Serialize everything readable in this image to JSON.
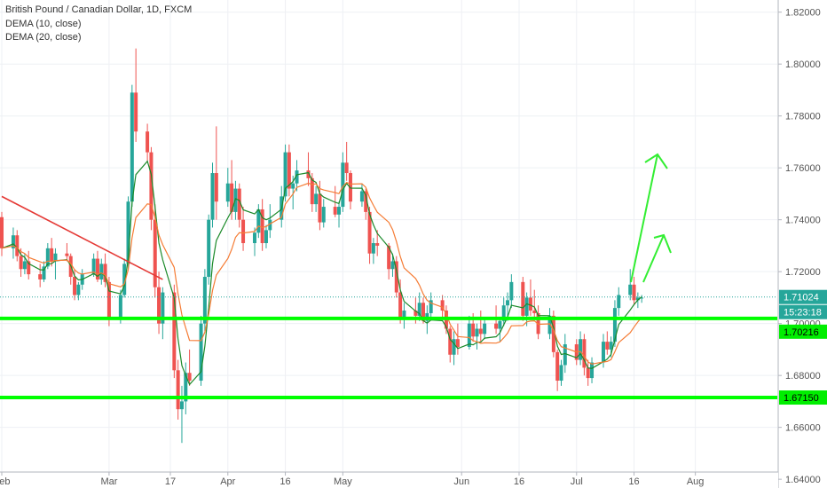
{
  "legend": {
    "title": "British Pound / Canadian Dollar, 1D, FXCM",
    "ind1": "DEMA (10, close)",
    "ind2": "DEMA (20, close)"
  },
  "colors": {
    "up": "#26a69a",
    "down": "#ef5350",
    "dema10": "#1b8a2a",
    "dema20": "#f57c35",
    "trendline": "#e53935",
    "support": "#00ff00",
    "arrows": "#33ee33",
    "price_label": "#26a69a",
    "support_label": "#00ee00",
    "grid": "#eef0f4"
  },
  "chart_data": {
    "type": "candlestick",
    "title": "British Pound / Canadian Dollar, 1D, FXCM",
    "ylim": [
      1.638,
      1.824
    ],
    "y_ticks": [
      "1.82000",
      "1.80000",
      "1.78000",
      "1.76000",
      "1.74000",
      "1.72000",
      "1.70000",
      "1.68000",
      "1.66000",
      "1.64000"
    ],
    "x_ticks": [
      {
        "label": "Feb",
        "date": "2019-02-01"
      },
      {
        "label": "Mar",
        "date": "2019-03-01"
      },
      {
        "label": "17",
        "date": "2019-03-17"
      },
      {
        "label": "Apr",
        "date": "2019-04-01"
      },
      {
        "label": "16",
        "date": "2019-04-16"
      },
      {
        "label": "May",
        "date": "2019-05-01"
      },
      {
        "label": "Jun",
        "date": "2019-06-01"
      },
      {
        "label": "16",
        "date": "2019-06-16"
      },
      {
        "label": "Jul",
        "date": "2019-07-01"
      },
      {
        "label": "16",
        "date": "2019-07-16"
      },
      {
        "label": "Aug",
        "date": "2019-08-01"
      }
    ],
    "x_range": [
      "2019-02-01",
      "2019-08-21"
    ],
    "candles": [
      [
        "2019-02-01",
        1.741,
        1.743,
        1.726,
        1.729
      ],
      [
        "2019-02-04",
        1.729,
        1.737,
        1.725,
        1.734
      ],
      [
        "2019-02-05",
        1.734,
        1.736,
        1.724,
        1.726
      ],
      [
        "2019-02-06",
        1.726,
        1.729,
        1.718,
        1.721
      ],
      [
        "2019-02-07",
        1.721,
        1.727,
        1.719,
        1.724
      ],
      [
        "2019-02-08",
        1.724,
        1.728,
        1.717,
        1.719
      ],
      [
        "2019-02-11",
        1.719,
        1.723,
        1.714,
        1.717
      ],
      [
        "2019-02-12",
        1.717,
        1.724,
        1.716,
        1.722
      ],
      [
        "2019-02-13",
        1.722,
        1.731,
        1.721,
        1.729
      ],
      [
        "2019-02-14",
        1.729,
        1.733,
        1.722,
        1.724
      ],
      [
        "2019-02-15",
        1.724,
        1.729,
        1.717,
        1.727
      ],
      [
        "2019-02-18",
        1.727,
        1.731,
        1.724,
        1.726
      ],
      [
        "2019-02-19",
        1.726,
        1.727,
        1.715,
        1.718
      ],
      [
        "2019-02-20",
        1.718,
        1.721,
        1.709,
        1.711
      ],
      [
        "2019-02-21",
        1.711,
        1.716,
        1.709,
        1.715
      ],
      [
        "2019-02-22",
        1.715,
        1.721,
        1.713,
        1.719
      ],
      [
        "2019-02-25",
        1.719,
        1.727,
        1.718,
        1.725
      ],
      [
        "2019-02-26",
        1.725,
        1.728,
        1.716,
        1.717
      ],
      [
        "2019-02-27",
        1.717,
        1.725,
        1.715,
        1.723
      ],
      [
        "2019-02-28",
        1.723,
        1.727,
        1.714,
        1.716
      ],
      [
        "2019-03-01",
        1.716,
        1.718,
        1.699,
        1.702
      ],
      [
        "2019-03-04",
        1.702,
        1.713,
        1.7,
        1.711
      ],
      [
        "2019-03-05",
        1.711,
        1.725,
        1.71,
        1.723
      ],
      [
        "2019-03-06",
        1.723,
        1.749,
        1.721,
        1.747
      ],
      [
        "2019-03-07",
        1.747,
        1.792,
        1.745,
        1.789
      ],
      [
        "2019-03-08",
        1.789,
        1.806,
        1.77,
        1.774
      ],
      [
        "2019-03-11",
        1.774,
        1.777,
        1.762,
        1.766
      ],
      [
        "2019-03-12",
        1.766,
        1.768,
        1.736,
        1.74
      ],
      [
        "2019-03-13",
        1.74,
        1.746,
        1.71,
        1.714
      ],
      [
        "2019-03-14",
        1.714,
        1.72,
        1.696,
        1.7
      ],
      [
        "2019-03-15",
        1.7,
        1.714,
        1.694,
        1.712
      ],
      [
        "2019-03-18",
        1.712,
        1.715,
        1.679,
        1.682
      ],
      [
        "2019-03-19",
        1.682,
        1.686,
        1.663,
        1.667
      ],
      [
        "2019-03-20",
        1.667,
        1.676,
        1.654,
        1.67
      ],
      [
        "2019-03-21",
        1.67,
        1.685,
        1.665,
        1.681
      ],
      [
        "2019-03-22",
        1.681,
        1.69,
        1.676,
        1.678
      ],
      [
        "2019-03-25",
        1.678,
        1.703,
        1.676,
        1.7
      ],
      [
        "2019-03-26",
        1.7,
        1.721,
        1.697,
        1.718
      ],
      [
        "2019-03-27",
        1.718,
        1.742,
        1.715,
        1.74
      ],
      [
        "2019-03-28",
        1.74,
        1.762,
        1.737,
        1.758
      ],
      [
        "2019-03-29",
        1.758,
        1.776,
        1.74,
        1.747
      ],
      [
        "2019-04-01",
        1.747,
        1.76,
        1.745,
        1.754
      ],
      [
        "2019-04-02",
        1.754,
        1.763,
        1.74,
        1.743
      ],
      [
        "2019-04-03",
        1.743,
        1.755,
        1.74,
        1.752
      ],
      [
        "2019-04-04",
        1.752,
        1.754,
        1.737,
        1.74
      ],
      [
        "2019-04-05",
        1.74,
        1.745,
        1.728,
        1.731
      ],
      [
        "2019-04-08",
        1.731,
        1.737,
        1.726,
        1.735
      ],
      [
        "2019-04-09",
        1.735,
        1.746,
        1.733,
        1.744
      ],
      [
        "2019-04-10",
        1.744,
        1.748,
        1.728,
        1.731
      ],
      [
        "2019-04-11",
        1.731,
        1.738,
        1.729,
        1.736
      ],
      [
        "2019-04-12",
        1.736,
        1.746,
        1.733,
        1.74
      ],
      [
        "2019-04-15",
        1.74,
        1.753,
        1.737,
        1.749
      ],
      [
        "2019-04-16",
        1.749,
        1.769,
        1.747,
        1.766
      ],
      [
        "2019-04-17",
        1.766,
        1.769,
        1.749,
        1.752
      ],
      [
        "2019-04-18",
        1.752,
        1.757,
        1.744,
        1.754
      ],
      [
        "2019-04-19",
        1.754,
        1.763,
        1.751,
        1.759
      ],
      [
        "2019-04-22",
        1.759,
        1.766,
        1.753,
        1.756
      ],
      [
        "2019-04-23",
        1.756,
        1.758,
        1.743,
        1.746
      ],
      [
        "2019-04-24",
        1.746,
        1.753,
        1.743,
        1.75
      ],
      [
        "2019-04-25",
        1.75,
        1.755,
        1.736,
        1.739
      ],
      [
        "2019-04-26",
        1.739,
        1.748,
        1.737,
        1.745
      ],
      [
        "2019-04-29",
        1.745,
        1.753,
        1.741,
        1.742
      ],
      [
        "2019-04-30",
        1.742,
        1.747,
        1.737,
        1.745
      ],
      [
        "2019-05-01",
        1.745,
        1.766,
        1.743,
        1.762
      ],
      [
        "2019-05-02",
        1.762,
        1.77,
        1.755,
        1.758
      ],
      [
        "2019-05-03",
        1.758,
        1.759,
        1.744,
        1.747
      ],
      [
        "2019-05-06",
        1.747,
        1.754,
        1.745,
        1.751
      ],
      [
        "2019-05-07",
        1.751,
        1.752,
        1.74,
        1.743
      ],
      [
        "2019-05-08",
        1.743,
        1.745,
        1.723,
        1.727
      ],
      [
        "2019-05-09",
        1.727,
        1.733,
        1.723,
        1.731
      ],
      [
        "2019-05-10",
        1.731,
        1.736,
        1.726,
        1.73
      ],
      [
        "2019-05-13",
        1.73,
        1.731,
        1.717,
        1.721
      ],
      [
        "2019-05-14",
        1.721,
        1.727,
        1.718,
        1.724
      ],
      [
        "2019-05-15",
        1.724,
        1.726,
        1.71,
        1.712
      ],
      [
        "2019-05-16",
        1.712,
        1.717,
        1.7,
        1.702
      ],
      [
        "2019-05-17",
        1.702,
        1.708,
        1.698,
        1.705
      ],
      [
        "2019-05-20",
        1.705,
        1.71,
        1.7,
        1.703
      ],
      [
        "2019-05-21",
        1.703,
        1.712,
        1.701,
        1.708
      ],
      [
        "2019-05-22",
        1.708,
        1.71,
        1.7,
        1.701
      ],
      [
        "2019-05-23",
        1.701,
        1.707,
        1.696,
        1.704
      ],
      [
        "2019-05-24",
        1.704,
        1.712,
        1.702,
        1.709
      ],
      [
        "2019-05-27",
        1.709,
        1.711,
        1.702,
        1.705
      ],
      [
        "2019-05-28",
        1.705,
        1.707,
        1.696,
        1.698
      ],
      [
        "2019-05-29",
        1.698,
        1.699,
        1.685,
        1.688
      ],
      [
        "2019-05-30",
        1.688,
        1.697,
        1.684,
        1.694
      ],
      [
        "2019-05-31",
        1.694,
        1.7,
        1.688,
        1.691
      ],
      [
        "2019-06-03",
        1.691,
        1.703,
        1.69,
        1.7
      ],
      [
        "2019-06-04",
        1.7,
        1.704,
        1.693,
        1.695
      ],
      [
        "2019-06-05",
        1.695,
        1.7,
        1.69,
        1.698
      ],
      [
        "2019-06-06",
        1.698,
        1.705,
        1.693,
        1.696
      ],
      [
        "2019-06-07",
        1.696,
        1.702,
        1.694,
        1.7
      ],
      [
        "2019-06-10",
        1.7,
        1.707,
        1.696,
        1.698
      ],
      [
        "2019-06-11",
        1.698,
        1.702,
        1.693,
        1.701
      ],
      [
        "2019-06-12",
        1.701,
        1.71,
        1.699,
        1.707
      ],
      [
        "2019-06-13",
        1.707,
        1.712,
        1.701,
        1.709
      ],
      [
        "2019-06-14",
        1.709,
        1.719,
        1.706,
        1.716
      ],
      [
        "2019-06-17",
        1.716,
        1.718,
        1.701,
        1.703
      ],
      [
        "2019-06-18",
        1.703,
        1.712,
        1.699,
        1.71
      ],
      [
        "2019-06-19",
        1.71,
        1.717,
        1.703,
        1.705
      ],
      [
        "2019-06-20",
        1.705,
        1.713,
        1.702,
        1.704
      ],
      [
        "2019-06-21",
        1.704,
        1.707,
        1.694,
        1.696
      ],
      [
        "2019-06-24",
        1.696,
        1.706,
        1.694,
        1.703
      ],
      [
        "2019-06-25",
        1.703,
        1.705,
        1.687,
        1.689
      ],
      [
        "2019-06-26",
        1.689,
        1.69,
        1.674,
        1.678
      ],
      [
        "2019-06-27",
        1.678,
        1.686,
        1.676,
        1.684
      ],
      [
        "2019-06-28",
        1.684,
        1.696,
        1.681,
        1.692
      ],
      [
        "2019-07-01",
        1.692,
        1.694,
        1.684,
        1.686
      ],
      [
        "2019-07-02",
        1.686,
        1.697,
        1.684,
        1.694
      ],
      [
        "2019-07-03",
        1.694,
        1.696,
        1.68,
        1.683
      ],
      [
        "2019-07-04",
        1.683,
        1.686,
        1.676,
        1.679
      ],
      [
        "2019-07-05",
        1.679,
        1.687,
        1.677,
        1.685
      ],
      [
        "2019-07-08",
        1.685,
        1.696,
        1.683,
        1.693
      ],
      [
        "2019-07-09",
        1.693,
        1.697,
        1.688,
        1.69
      ],
      [
        "2019-07-10",
        1.69,
        1.695,
        1.687,
        1.693
      ],
      [
        "2019-07-11",
        1.693,
        1.709,
        1.691,
        1.706
      ],
      [
        "2019-07-12",
        1.706,
        1.714,
        1.703,
        1.711
      ],
      [
        "2019-07-15",
        1.711,
        1.721,
        1.709,
        1.715
      ],
      [
        "2019-07-16",
        1.715,
        1.718,
        1.707,
        1.709
      ],
      [
        "2019-07-17",
        1.709,
        1.712,
        1.706,
        1.71
      ],
      [
        "2019-07-18",
        1.71,
        1.711,
        1.708,
        1.71
      ]
    ],
    "overlays": {
      "trendline": [
        [
          "2019-02-01",
          1.749
        ],
        [
          "2019-03-15",
          1.717
        ]
      ],
      "support_lines": [
        1.702,
        1.6715
      ]
    },
    "price_labels": {
      "last": "1.71024",
      "countdown": "15:23:18",
      "support_upper": "1.70216",
      "support_lower": "1.67150"
    }
  }
}
